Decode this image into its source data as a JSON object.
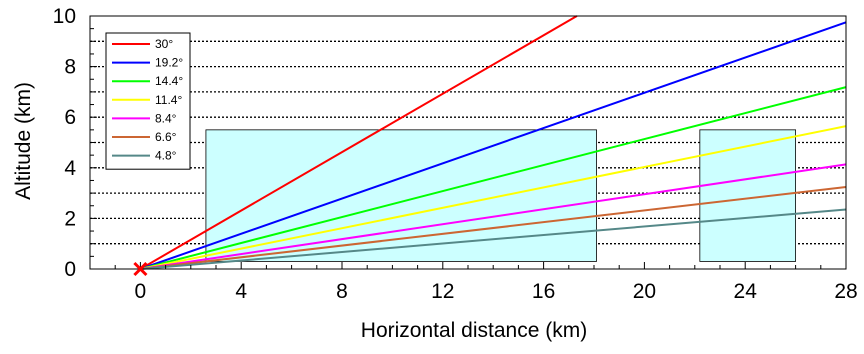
{
  "chart_data": {
    "type": "line",
    "title": "",
    "xlabel": "Horizontal distance (km)",
    "ylabel": "Altitude (km)",
    "xlim": [
      -2,
      28
    ],
    "ylim": [
      0,
      10
    ],
    "x_ticks": [
      0,
      4,
      8,
      12,
      16,
      20,
      24,
      28
    ],
    "y_ticks": [
      0,
      2,
      4,
      6,
      8,
      10
    ],
    "grid": "horizontal dotted lines at every 1 km",
    "legend_position": "top-left",
    "series": [
      {
        "name": "30°",
        "color": "#ff0000",
        "angle_deg": 30.0
      },
      {
        "name": "19.2°",
        "color": "#0000ff",
        "angle_deg": 19.2
      },
      {
        "name": "14.4°",
        "color": "#00ff00",
        "angle_deg": 14.4
      },
      {
        "name": "11.4°",
        "color": "#ffff00",
        "angle_deg": 11.4
      },
      {
        "name": "8.4°",
        "color": "#ff00ff",
        "angle_deg": 8.4
      },
      {
        "name": "6.6°",
        "color": "#cc6633",
        "angle_deg": 6.6
      },
      {
        "name": "4.8°",
        "color": "#558888",
        "angle_deg": 4.8
      }
    ],
    "regions": [
      {
        "x": [
          2.6,
          18.1
        ],
        "y": [
          0.3,
          5.5
        ],
        "color": "#ccffff"
      },
      {
        "x": [
          22.2,
          26.0
        ],
        "y": [
          0.3,
          5.5
        ],
        "color": "#ccffff"
      }
    ],
    "origin_marker": {
      "x": 0,
      "y": 0,
      "symbol": "×",
      "color": "#ff0000"
    }
  }
}
